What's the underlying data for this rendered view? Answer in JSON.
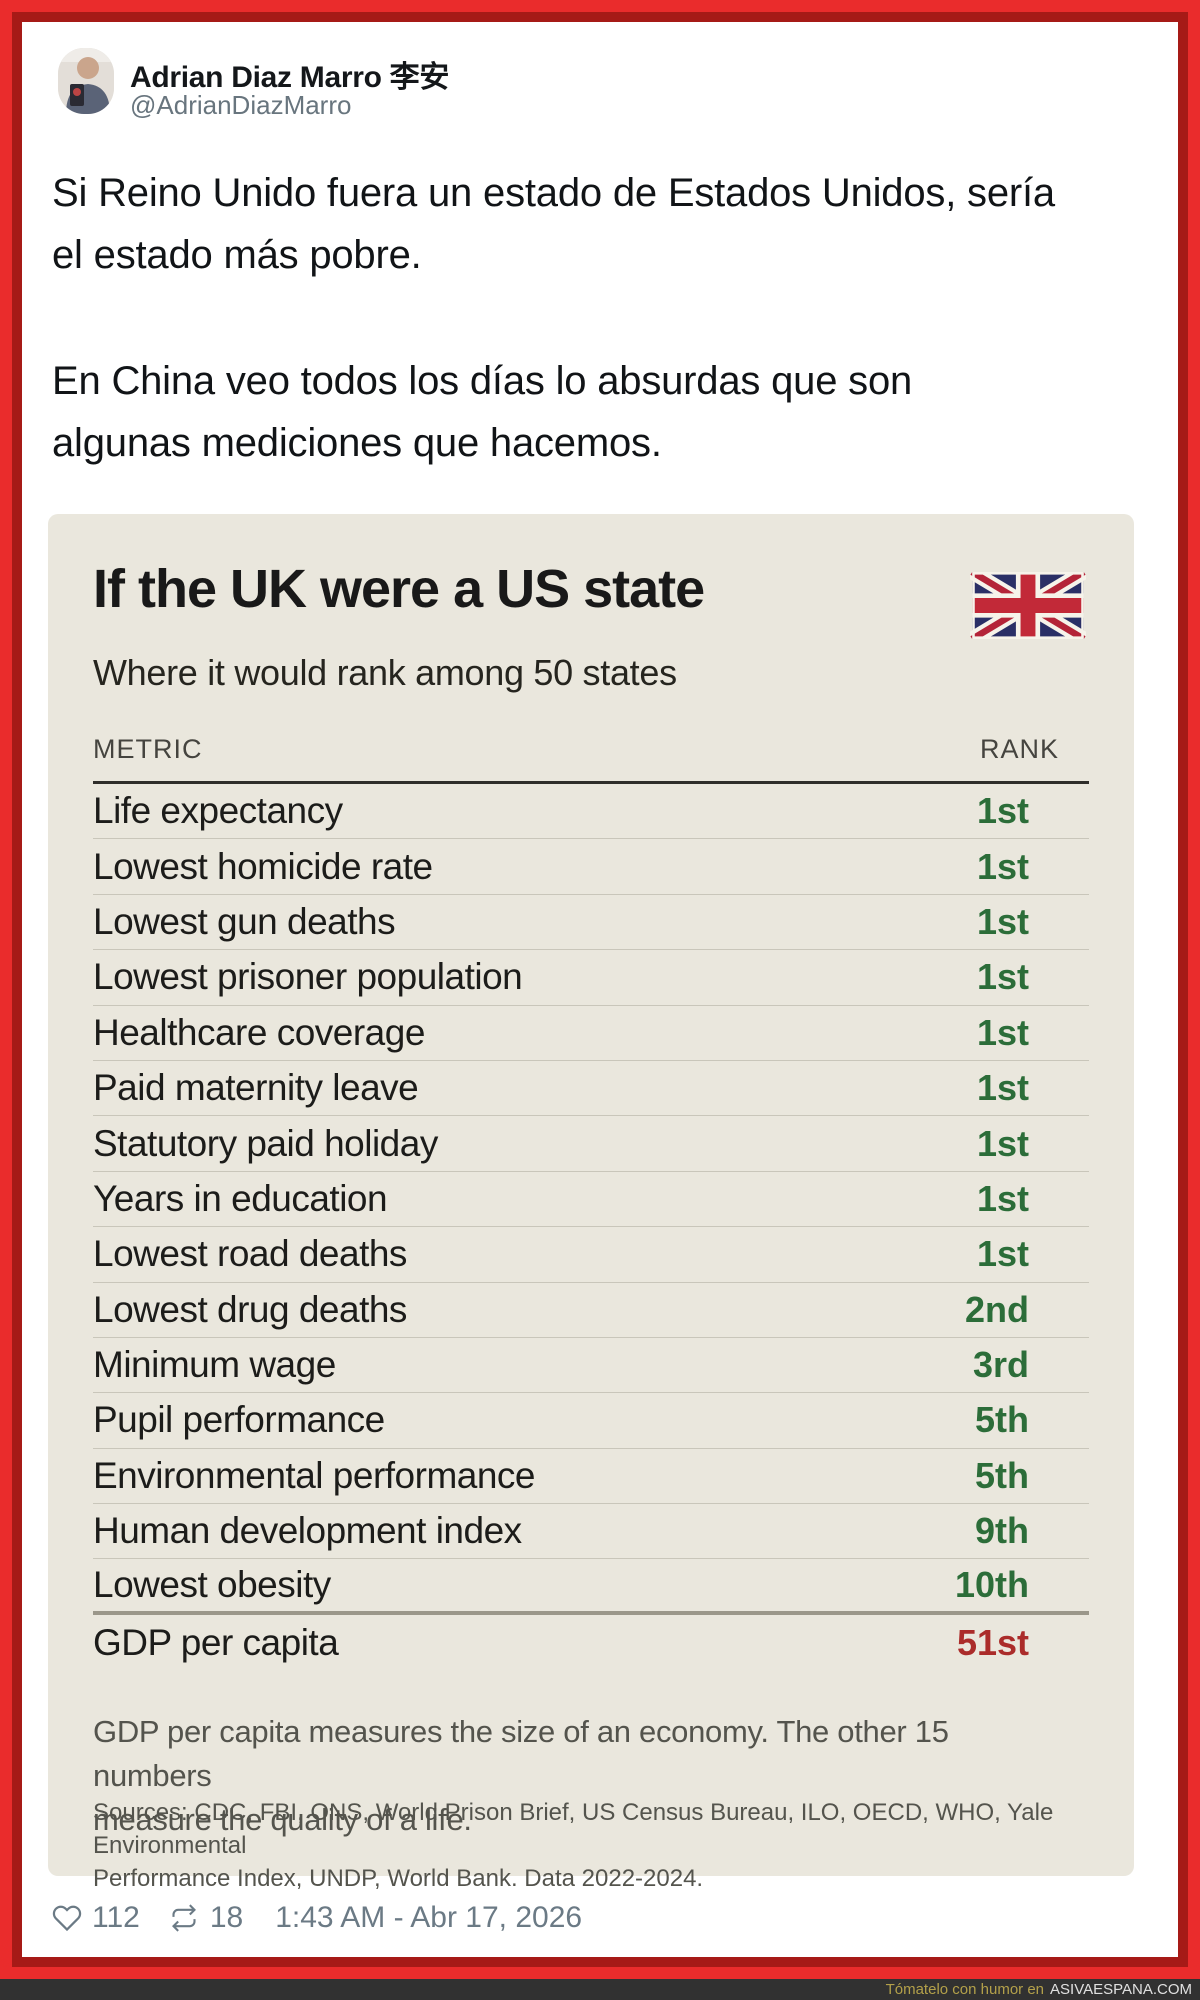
{
  "tweet": {
    "author_name": "Adrian Diaz Marro 李安",
    "author_handle": "@AdrianDiazMarro",
    "paragraph1": "Si Reino Unido fuera un estado de Estados Unidos, sería\nel estado más pobre.",
    "paragraph2": "En China veo todos los días lo absurdas que son\nalgunas mediciones que hacemos.",
    "likes": "112",
    "retweets": "18",
    "timestamp": "1:43 AM - Abr 17, 2026"
  },
  "infographic": {
    "title": "If the UK were a US state",
    "subtitle": "Where it would rank among 50 states",
    "flag_icon": "uk-flag",
    "table": {
      "metric_header": "METRIC",
      "rank_header": "RANK",
      "rows": [
        {
          "metric": "Life expectancy",
          "rank": "1st",
          "emphasis": "good"
        },
        {
          "metric": "Lowest homicide rate",
          "rank": "1st",
          "emphasis": "good"
        },
        {
          "metric": "Lowest gun deaths",
          "rank": "1st",
          "emphasis": "good"
        },
        {
          "metric": "Lowest prisoner population",
          "rank": "1st",
          "emphasis": "good"
        },
        {
          "metric": "Healthcare coverage",
          "rank": "1st",
          "emphasis": "good"
        },
        {
          "metric": "Paid maternity leave",
          "rank": "1st",
          "emphasis": "good"
        },
        {
          "metric": "Statutory paid holiday",
          "rank": "1st",
          "emphasis": "good"
        },
        {
          "metric": "Years in education",
          "rank": "1st",
          "emphasis": "good"
        },
        {
          "metric": "Lowest road deaths",
          "rank": "1st",
          "emphasis": "good"
        },
        {
          "metric": "Lowest drug deaths",
          "rank": "2nd",
          "emphasis": "good"
        },
        {
          "metric": "Minimum wage",
          "rank": "3rd",
          "emphasis": "good"
        },
        {
          "metric": "Pupil performance",
          "rank": "5th",
          "emphasis": "good"
        },
        {
          "metric": "Environmental performance",
          "rank": "5th",
          "emphasis": "good"
        },
        {
          "metric": "Human development index",
          "rank": "9th",
          "emphasis": "good"
        },
        {
          "metric": "Lowest obesity",
          "rank": "10th",
          "emphasis": "good",
          "divider": "thick"
        },
        {
          "metric": "GDP per capita",
          "rank": "51st",
          "emphasis": "bad",
          "divider": "none"
        }
      ]
    },
    "footnote": "GDP per capita measures the size of an economy. The other 15 numbers\nmeasure the quality of a life.",
    "sources": "Sources: CDC, FBI, ONS, World Prison Brief, US Census Bureau, ILO, OECD, WHO, Yale Environmental\nPerformance Index, UNDP, World Bank. Data 2022-2024.",
    "colors": {
      "card_background": "#eae7dd",
      "good_rank": "#2c6d39",
      "bad_rank": "#ab2c2a",
      "frame_outer": "#ea2c2c",
      "frame_inner": "#a61a17"
    }
  },
  "attribution": {
    "prefix": "Tómatelo con humor en",
    "site": "ASIVAESPANA.COM"
  }
}
